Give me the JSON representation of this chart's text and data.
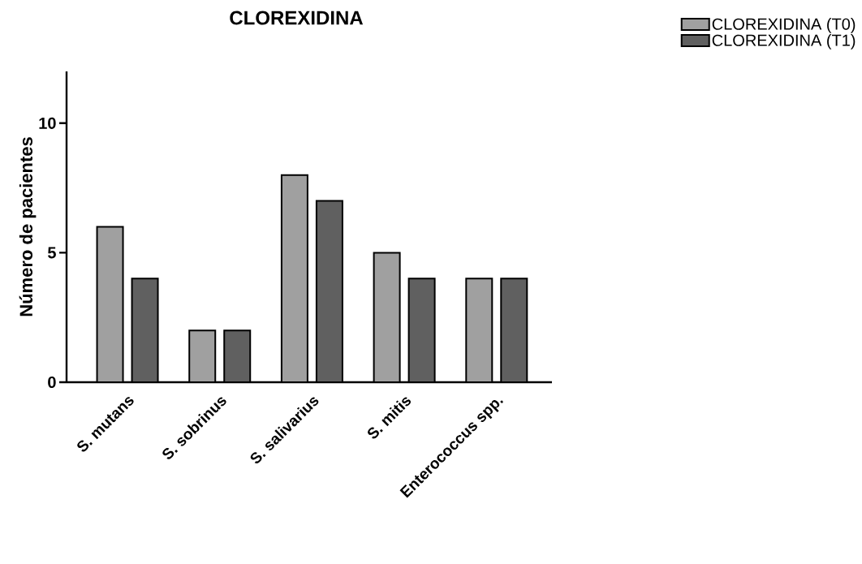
{
  "chart_data": {
    "type": "bar",
    "title": "CLOREXIDINA",
    "ylabel": "Número de pacientes",
    "categories": [
      "S. mutans",
      "S. sobrinus",
      "S. salivarius",
      "S. mitis",
      "Enterococcus spp."
    ],
    "series": [
      {
        "name": "CLOREXIDINA (T0)",
        "color": "#a0a0a0",
        "values": [
          6,
          2,
          8,
          5,
          4
        ]
      },
      {
        "name": "CLOREXIDINA (T1)",
        "color": "#606060",
        "values": [
          4,
          2,
          7,
          4,
          4
        ]
      }
    ],
    "ylim": [
      0,
      12
    ],
    "yticks": [
      0,
      5,
      10
    ],
    "legend": "top right"
  }
}
